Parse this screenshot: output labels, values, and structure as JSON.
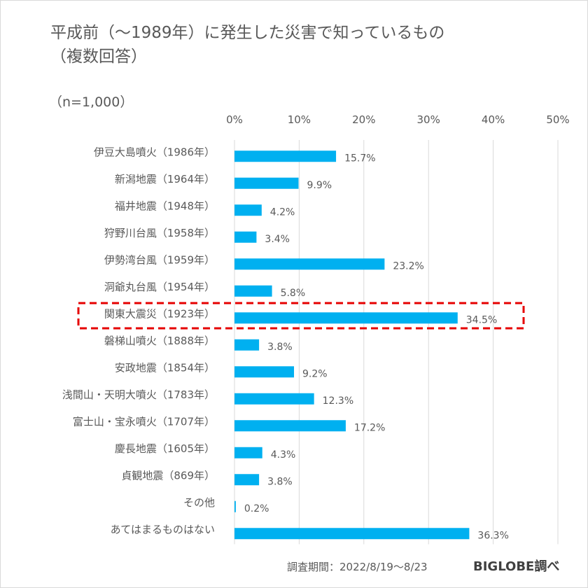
{
  "title_line1": "平成前（〜1989年）に発生した災害で知っているもの",
  "title_line2": "（複数回答）",
  "n_label": "（n=1,000）",
  "source": "調査期間：2022/8/19〜8/23",
  "brand": "BIGLOBE調べ",
  "colors": {
    "bar": "#00b0f0",
    "highlight_box": "#e60000",
    "grid": "#d9d9d9",
    "text": "#595959"
  },
  "chart_data": {
    "type": "bar",
    "orientation": "horizontal",
    "categories": [
      "伊豆大島噴火（1986年）",
      "新潟地震（1964年）",
      "福井地震（1948年）",
      "狩野川台風（1958年）",
      "伊勢湾台風（1959年）",
      "洞爺丸台風（1954年）",
      "関東大震災（1923年）",
      "磐梯山噴火（1888年）",
      "安政地震（1854年）",
      "浅間山・天明大噴火（1783年）",
      "富士山・宝永噴火（1707年）",
      "慶長地震（1605年）",
      "貞観地震（869年）",
      "その他",
      "あてはまるものはない"
    ],
    "values": [
      15.7,
      9.9,
      4.2,
      3.4,
      23.2,
      5.8,
      34.5,
      3.8,
      9.2,
      12.3,
      17.2,
      4.3,
      3.8,
      0.2,
      36.3
    ],
    "value_labels": [
      "15.7%",
      "9.9%",
      "4.2%",
      "3.4%",
      "23.2%",
      "5.8%",
      "34.5%",
      "3.8%",
      "9.2%",
      "12.3%",
      "17.2%",
      "4.3%",
      "3.8%",
      "0.2%",
      "36.3%"
    ],
    "xlim": [
      0,
      50
    ],
    "ticks": [
      0,
      10,
      20,
      30,
      40,
      50
    ],
    "tick_labels": [
      "0%",
      "10%",
      "20%",
      "30%",
      "40%",
      "50%"
    ],
    "axis_position": "top",
    "grid": true,
    "highlight_index": 6
  }
}
